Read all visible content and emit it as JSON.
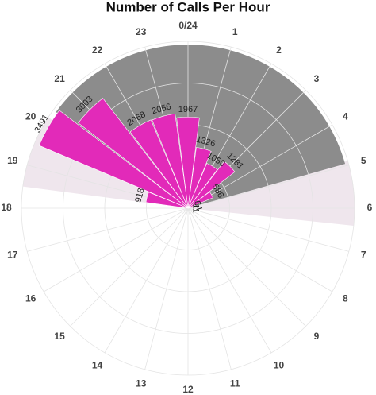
{
  "chart_data": {
    "type": "polar-bar",
    "title": "Number of Calls Per Hour",
    "categories": [
      "0/24",
      "1",
      "2",
      "3",
      "4",
      "5",
      "6",
      "7",
      "8",
      "9",
      "10",
      "11",
      "12",
      "13",
      "14",
      "15",
      "16",
      "17",
      "18",
      "19",
      "20",
      "21",
      "22",
      "23"
    ],
    "values": [
      1967,
      1326,
      1050,
      1281,
      586,
      64,
      11,
      null,
      null,
      null,
      null,
      null,
      null,
      null,
      null,
      null,
      null,
      null,
      null,
      918,
      3491,
      3003,
      2068,
      2056
    ],
    "color": "#e22ab9",
    "rlim": [
      0,
      3600
    ]
  }
}
